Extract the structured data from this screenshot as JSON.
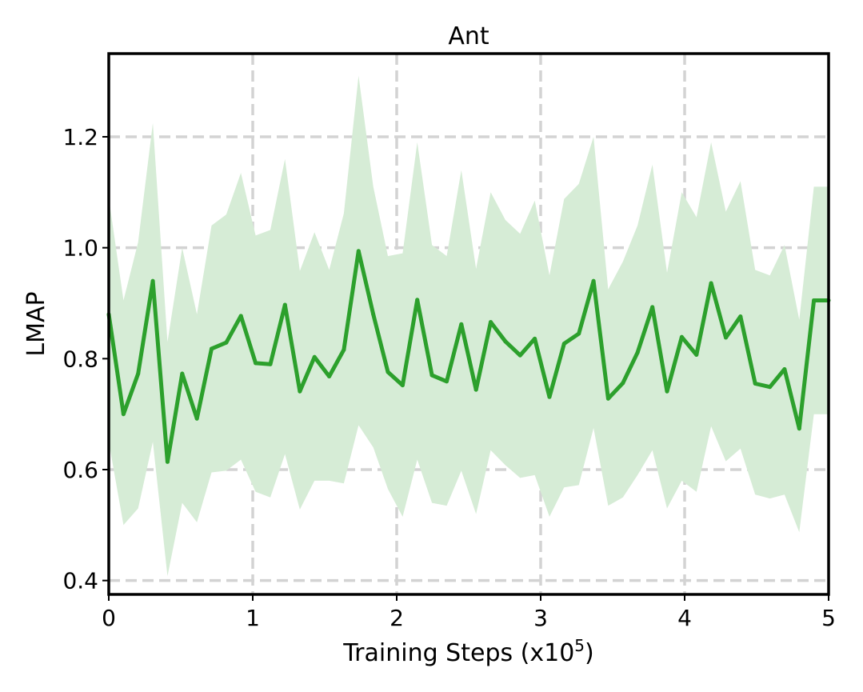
{
  "chart_data": {
    "type": "line",
    "title": "Ant",
    "xlabel": {
      "prefix": "Training Steps (x10",
      "superscript": "5",
      "suffix": ")"
    },
    "ylabel": "LMAP",
    "xlim": [
      0,
      5
    ],
    "ylim": [
      0.375,
      1.35
    ],
    "xticks": [
      0,
      1,
      2,
      3,
      4,
      5
    ],
    "xtick_labels": [
      "0",
      "1",
      "2",
      "3",
      "4",
      "5"
    ],
    "yticks": [
      0.4,
      0.6,
      0.8,
      1.0,
      1.2
    ],
    "ytick_labels": [
      "0.4",
      "0.6",
      "0.8",
      "1.0",
      "1.2"
    ],
    "grid": true,
    "legend": "none",
    "series": [
      {
        "color": "#2ca02c",
        "band_color": "#d6ecd6",
        "x": [
          0,
          0.102,
          0.204,
          0.306,
          0.408,
          0.51,
          0.612,
          0.714,
          0.816,
          0.918,
          1.02,
          1.122,
          1.224,
          1.327,
          1.429,
          1.531,
          1.633,
          1.735,
          1.837,
          1.939,
          2.041,
          2.143,
          2.245,
          2.347,
          2.449,
          2.551,
          2.653,
          2.755,
          2.857,
          2.959,
          3.061,
          3.163,
          3.265,
          3.367,
          3.469,
          3.571,
          3.673,
          3.776,
          3.878,
          3.98,
          4.082,
          4.184,
          4.286,
          4.388,
          4.49,
          4.592,
          4.694,
          4.796,
          4.898,
          5.0
        ],
        "values": [
          0.88,
          0.7,
          0.773,
          0.94,
          0.614,
          0.773,
          0.692,
          0.818,
          0.829,
          0.877,
          0.792,
          0.79,
          0.897,
          0.741,
          0.803,
          0.768,
          0.816,
          0.994,
          0.88,
          0.776,
          0.752,
          0.906,
          0.77,
          0.759,
          0.862,
          0.744,
          0.866,
          0.831,
          0.806,
          0.836,
          0.731,
          0.827,
          0.845,
          0.94,
          0.728,
          0.756,
          0.811,
          0.893,
          0.741,
          0.839,
          0.807,
          0.936,
          0.838,
          0.876,
          0.755,
          0.749,
          0.781,
          0.674,
          0.905,
          0.905
        ],
        "upper": [
          1.09,
          0.905,
          1.01,
          1.225,
          0.83,
          1.0,
          0.88,
          1.04,
          1.06,
          1.135,
          1.022,
          1.032,
          1.16,
          0.958,
          1.028,
          0.96,
          1.062,
          1.31,
          1.11,
          0.985,
          0.99,
          1.19,
          1.005,
          0.985,
          1.14,
          0.962,
          1.1,
          1.05,
          1.025,
          1.085,
          0.95,
          1.088,
          1.115,
          1.2,
          0.925,
          0.975,
          1.04,
          1.15,
          0.955,
          1.1,
          1.055,
          1.19,
          1.065,
          1.12,
          0.96,
          0.95,
          1.005,
          0.87,
          1.11,
          1.11
        ],
        "lower": [
          0.65,
          0.5,
          0.53,
          0.65,
          0.408,
          0.54,
          0.505,
          0.595,
          0.598,
          0.618,
          0.56,
          0.55,
          0.628,
          0.528,
          0.58,
          0.58,
          0.575,
          0.68,
          0.64,
          0.565,
          0.515,
          0.618,
          0.54,
          0.535,
          0.598,
          0.52,
          0.635,
          0.608,
          0.585,
          0.59,
          0.515,
          0.568,
          0.572,
          0.675,
          0.535,
          0.55,
          0.59,
          0.635,
          0.53,
          0.58,
          0.56,
          0.678,
          0.615,
          0.638,
          0.555,
          0.548,
          0.555,
          0.487,
          0.7,
          0.7
        ]
      }
    ]
  }
}
